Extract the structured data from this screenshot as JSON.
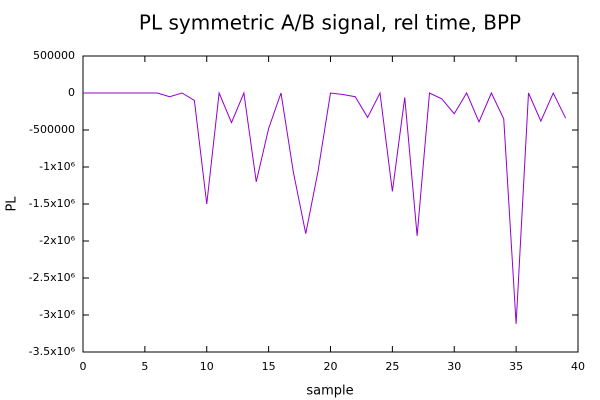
{
  "chart_data": {
    "type": "line",
    "title": "PL symmetric A/B signal, rel time, BPP",
    "x_label": "sample",
    "y_label": "PL",
    "color": "#9400d3",
    "x": [
      0,
      1,
      2,
      3,
      4,
      5,
      6,
      7,
      8,
      9,
      10,
      11,
      12,
      13,
      14,
      15,
      16,
      17,
      18,
      19,
      20,
      21,
      22,
      23,
      24,
      25,
      26,
      27,
      28,
      29,
      30,
      31,
      32,
      33,
      34,
      35,
      36,
      37,
      38,
      39
    ],
    "values": [
      0,
      0,
      0,
      0,
      0,
      0,
      0,
      -50000,
      0,
      -100000,
      -1500000,
      0,
      -400000,
      0,
      -1200000,
      -480000,
      0,
      -1070000,
      -1900000,
      -1050000,
      0,
      -20000,
      -50000,
      -330000,
      0,
      -1330000,
      -60000,
      -1930000,
      0,
      -80000,
      -280000,
      0,
      -390000,
      0,
      -350000,
      -3120000,
      0,
      -380000,
      0,
      -340000
    ],
    "xlim": [
      0,
      40
    ],
    "xticks": [
      0,
      5,
      10,
      15,
      20,
      25,
      30,
      35,
      40
    ],
    "ylim": [
      -3500000,
      500000
    ],
    "yticks": [
      500000,
      0,
      -500000,
      {
        "value": -1000000,
        "label": "-1x10⁶"
      },
      {
        "value": -1500000,
        "label": "-1.5x10⁶"
      },
      {
        "value": -2000000,
        "label": "-2x10⁶"
      },
      {
        "value": -2500000,
        "label": "-2.5x10⁶"
      },
      {
        "value": -3000000,
        "label": "-3x10⁶"
      },
      {
        "value": -3500000,
        "label": "-3.5x10⁶"
      }
    ]
  }
}
